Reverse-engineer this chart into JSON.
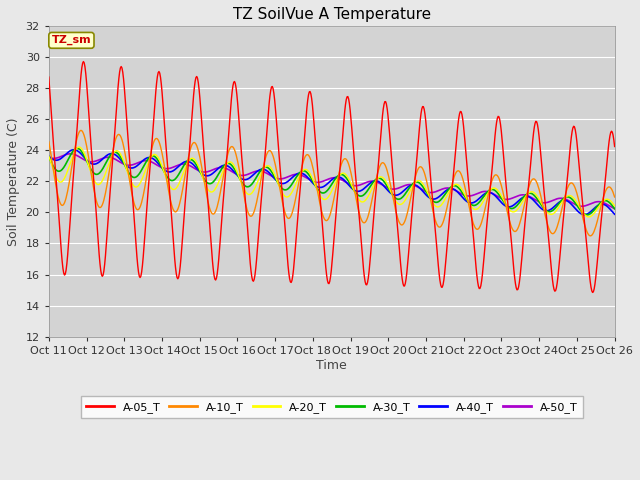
{
  "title": "TZ SoilVue A Temperature",
  "xlabel": "Time",
  "ylabel": "Soil Temperature (C)",
  "ylim": [
    12,
    32
  ],
  "yticks": [
    12,
    14,
    16,
    18,
    20,
    22,
    24,
    26,
    28,
    30,
    32
  ],
  "x_labels": [
    "Oct 11",
    "Oct 12",
    "Oct 13",
    "Oct 14",
    "Oct 15",
    "Oct 16",
    "Oct 17",
    "Oct 18",
    "Oct 19",
    "Oct 20",
    "Oct 21",
    "Oct 22",
    "Oct 23",
    "Oct 24",
    "Oct 25",
    "Oct 26"
  ],
  "background_color": "#e8e8e8",
  "plot_bg_color": "#d3d3d3",
  "grid_color": "#ffffff",
  "series": {
    "A-05_T": {
      "color": "#ff0000",
      "linewidth": 1.0
    },
    "A-10_T": {
      "color": "#ff8800",
      "linewidth": 1.0
    },
    "A-20_T": {
      "color": "#ffff00",
      "linewidth": 1.0
    },
    "A-30_T": {
      "color": "#00bb00",
      "linewidth": 1.2
    },
    "A-40_T": {
      "color": "#0000ff",
      "linewidth": 1.2
    },
    "A-50_T": {
      "color": "#aa00cc",
      "linewidth": 1.2
    }
  },
  "annotation_text": "TZ_sm",
  "annotation_color": "#cc0000",
  "annotation_bg": "#ffffcc",
  "annotation_border": "#888800",
  "figsize": [
    6.4,
    4.8
  ],
  "dpi": 100
}
